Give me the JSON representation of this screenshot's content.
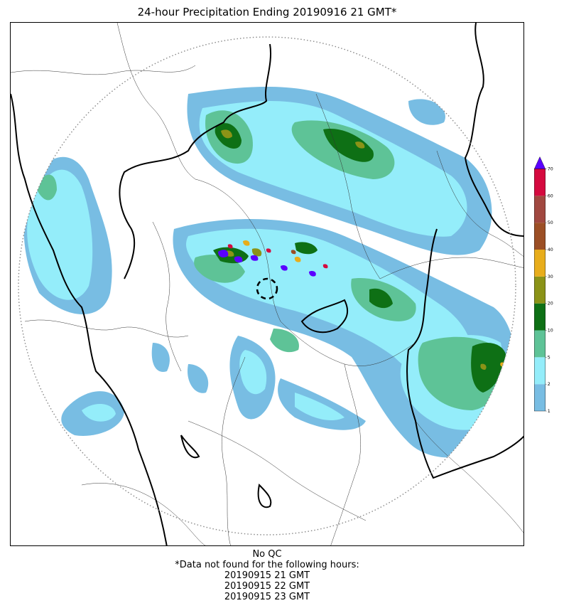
{
  "title": "24-hour Precipitation Ending 20190916 21 GMT*",
  "colorbar": {
    "ticks": [
      "1",
      "2",
      "5",
      "10",
      "20",
      "30",
      "40",
      "50",
      "60",
      "70"
    ],
    "colors": [
      "#78BDE3",
      "#94EDFA",
      "#5EC397",
      "#0E7015",
      "#8B9317",
      "#E8AD1B",
      "#9C4F25",
      "#A14840",
      "#D50A3F"
    ],
    "extend_color": "#5A00FF"
  },
  "footer": {
    "lines": [
      "No QC",
      "*Data not found for the following hours:",
      "20190915 21 GMT",
      "20190915 22 GMT",
      "20190915 23 GMT"
    ]
  }
}
